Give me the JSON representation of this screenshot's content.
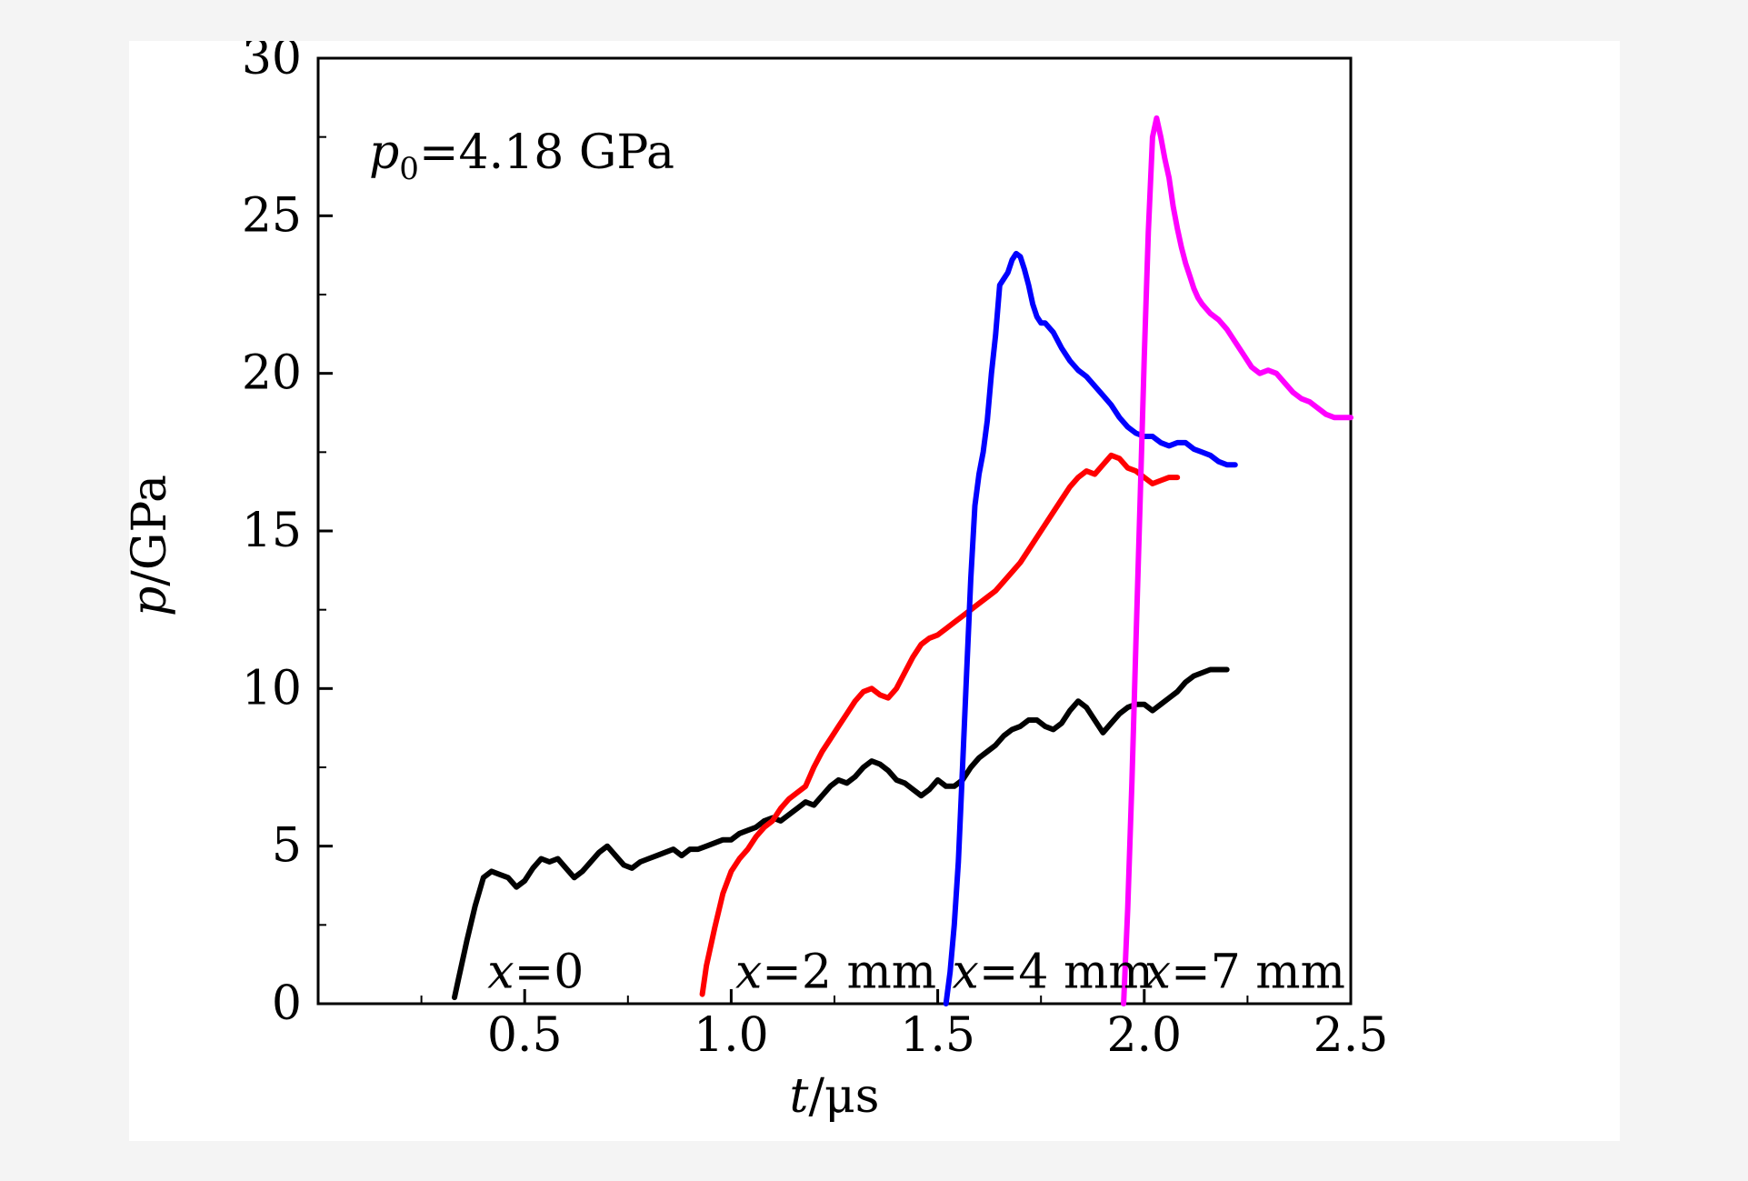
{
  "chart_data": {
    "type": "line",
    "title": "",
    "annotation": {
      "var": "p",
      "sub": "0",
      "text": "=4.18 GPa"
    },
    "xlabel": {
      "var": "t",
      "unit": "/μs"
    },
    "ylabel": {
      "var": "p",
      "unit": "/GPa"
    },
    "xlim": [
      0,
      2.5
    ],
    "ylim": [
      0,
      30
    ],
    "xticks": [
      0.5,
      1.0,
      1.5,
      2.0,
      2.5
    ],
    "xtick_labels": [
      "0.5",
      "1.0",
      "1.5",
      "2.0",
      "2.5"
    ],
    "yticks": [
      0,
      5,
      10,
      15,
      20,
      25,
      30
    ],
    "ytick_labels": [
      "0",
      "5",
      "10",
      "15",
      "20",
      "25",
      "30"
    ],
    "series": [
      {
        "name": "x=0",
        "label_var": "x",
        "label_text": "=0",
        "color": "#000000",
        "label_at": [
          0.41,
          0.5
        ],
        "x": [
          0.33,
          0.34,
          0.36,
          0.38,
          0.4,
          0.42,
          0.44,
          0.46,
          0.48,
          0.5,
          0.52,
          0.54,
          0.56,
          0.58,
          0.6,
          0.62,
          0.64,
          0.66,
          0.68,
          0.7,
          0.72,
          0.74,
          0.76,
          0.78,
          0.8,
          0.82,
          0.84,
          0.86,
          0.88,
          0.9,
          0.92,
          0.94,
          0.96,
          0.98,
          1.0,
          1.02,
          1.04,
          1.06,
          1.08,
          1.1,
          1.12,
          1.14,
          1.16,
          1.18,
          1.2,
          1.22,
          1.24,
          1.26,
          1.28,
          1.3,
          1.32,
          1.34,
          1.36,
          1.38,
          1.4,
          1.42,
          1.44,
          1.46,
          1.48,
          1.5,
          1.52,
          1.54,
          1.56,
          1.58,
          1.6,
          1.62,
          1.64,
          1.66,
          1.68,
          1.7,
          1.72,
          1.74,
          1.76,
          1.78,
          1.8,
          1.82,
          1.84,
          1.86,
          1.88,
          1.9,
          1.92,
          1.94,
          1.96,
          1.98,
          2.0,
          2.02,
          2.04,
          2.06,
          2.08,
          2.1,
          2.12,
          2.14,
          2.16,
          2.18,
          2.2
        ],
        "y": [
          0.2,
          0.8,
          2.0,
          3.1,
          4.0,
          4.2,
          4.1,
          4.0,
          3.7,
          3.9,
          4.3,
          4.6,
          4.5,
          4.6,
          4.3,
          4.0,
          4.2,
          4.5,
          4.8,
          5.0,
          4.7,
          4.4,
          4.3,
          4.5,
          4.6,
          4.7,
          4.8,
          4.9,
          4.7,
          4.9,
          4.9,
          5.0,
          5.1,
          5.2,
          5.2,
          5.4,
          5.5,
          5.6,
          5.8,
          5.9,
          5.8,
          6.0,
          6.2,
          6.4,
          6.3,
          6.6,
          6.9,
          7.1,
          7.0,
          7.2,
          7.5,
          7.7,
          7.6,
          7.4,
          7.1,
          7.0,
          6.8,
          6.6,
          6.8,
          7.1,
          6.9,
          6.9,
          7.1,
          7.5,
          7.8,
          8.0,
          8.2,
          8.5,
          8.7,
          8.8,
          9.0,
          9.0,
          8.8,
          8.7,
          8.9,
          9.3,
          9.6,
          9.4,
          9.0,
          8.6,
          8.9,
          9.2,
          9.4,
          9.5,
          9.5,
          9.3,
          9.5,
          9.7,
          9.9,
          10.2,
          10.4,
          10.5,
          10.6,
          10.6,
          10.6
        ]
      },
      {
        "name": "x=2 mm",
        "label_var": "x",
        "label_text": "=2 mm",
        "color": "#ff0000",
        "label_at": [
          1.01,
          0.5
        ],
        "x": [
          0.93,
          0.94,
          0.96,
          0.98,
          1.0,
          1.02,
          1.04,
          1.06,
          1.08,
          1.1,
          1.12,
          1.14,
          1.16,
          1.18,
          1.2,
          1.22,
          1.24,
          1.26,
          1.28,
          1.3,
          1.32,
          1.34,
          1.36,
          1.38,
          1.4,
          1.42,
          1.44,
          1.46,
          1.48,
          1.5,
          1.52,
          1.54,
          1.56,
          1.58,
          1.6,
          1.62,
          1.64,
          1.66,
          1.68,
          1.7,
          1.72,
          1.74,
          1.76,
          1.78,
          1.8,
          1.82,
          1.84,
          1.86,
          1.88,
          1.9,
          1.92,
          1.94,
          1.96,
          1.98,
          2.0,
          2.02,
          2.04,
          2.06,
          2.08
        ],
        "y": [
          0.3,
          1.2,
          2.4,
          3.5,
          4.2,
          4.6,
          4.9,
          5.3,
          5.6,
          5.8,
          6.2,
          6.5,
          6.7,
          6.9,
          7.5,
          8.0,
          8.4,
          8.8,
          9.2,
          9.6,
          9.9,
          10.0,
          9.8,
          9.7,
          10.0,
          10.5,
          11.0,
          11.4,
          11.6,
          11.7,
          11.9,
          12.1,
          12.3,
          12.5,
          12.7,
          12.9,
          13.1,
          13.4,
          13.7,
          14.0,
          14.4,
          14.8,
          15.2,
          15.6,
          16.0,
          16.4,
          16.7,
          16.9,
          16.8,
          17.1,
          17.4,
          17.3,
          17.0,
          16.9,
          16.7,
          16.5,
          16.6,
          16.7,
          16.7
        ]
      },
      {
        "name": "x=4 mm",
        "label_var": "x",
        "label_text": "=4 mm",
        "color": "#0000ff",
        "label_at": [
          1.535,
          0.5
        ],
        "x": [
          1.52,
          1.53,
          1.54,
          1.55,
          1.56,
          1.57,
          1.58,
          1.59,
          1.6,
          1.61,
          1.62,
          1.63,
          1.64,
          1.65,
          1.66,
          1.67,
          1.68,
          1.69,
          1.7,
          1.71,
          1.72,
          1.73,
          1.74,
          1.75,
          1.76,
          1.78,
          1.8,
          1.82,
          1.84,
          1.86,
          1.88,
          1.9,
          1.92,
          1.94,
          1.96,
          1.98,
          2.0,
          2.02,
          2.04,
          2.06,
          2.08,
          2.1,
          2.12,
          2.14,
          2.16,
          2.18,
          2.2,
          2.22
        ],
        "y": [
          0.0,
          1.0,
          2.5,
          4.5,
          7.5,
          10.5,
          13.5,
          15.8,
          16.8,
          17.5,
          18.5,
          20.0,
          21.2,
          22.8,
          23.0,
          23.2,
          23.6,
          23.8,
          23.7,
          23.3,
          22.8,
          22.2,
          21.8,
          21.6,
          21.6,
          21.3,
          20.8,
          20.4,
          20.1,
          19.9,
          19.6,
          19.3,
          19.0,
          18.6,
          18.3,
          18.1,
          18.0,
          18.0,
          17.8,
          17.7,
          17.8,
          17.8,
          17.6,
          17.5,
          17.4,
          17.2,
          17.1,
          17.1
        ]
      },
      {
        "name": "x=7 mm",
        "label_var": "x",
        "label_text": "=7 mm",
        "color": "#ff00ff",
        "label_at": [
          2.0,
          0.5
        ],
        "x": [
          1.95,
          1.96,
          1.97,
          1.98,
          1.99,
          2.0,
          2.01,
          2.02,
          2.03,
          2.04,
          2.05,
          2.06,
          2.07,
          2.08,
          2.09,
          2.1,
          2.11,
          2.12,
          2.13,
          2.14,
          2.16,
          2.18,
          2.2,
          2.22,
          2.24,
          2.26,
          2.28,
          2.3,
          2.32,
          2.34,
          2.36,
          2.38,
          2.4,
          2.42,
          2.44,
          2.46,
          2.48,
          2.5
        ],
        "y": [
          0.0,
          3.0,
          7.0,
          11.5,
          16.0,
          20.5,
          24.5,
          27.5,
          28.1,
          27.5,
          26.8,
          26.2,
          25.3,
          24.6,
          24.0,
          23.5,
          23.1,
          22.7,
          22.4,
          22.2,
          21.9,
          21.7,
          21.4,
          21.0,
          20.6,
          20.2,
          20.0,
          20.1,
          20.0,
          19.7,
          19.4,
          19.2,
          19.1,
          18.9,
          18.7,
          18.6,
          18.6,
          18.6
        ]
      }
    ]
  }
}
